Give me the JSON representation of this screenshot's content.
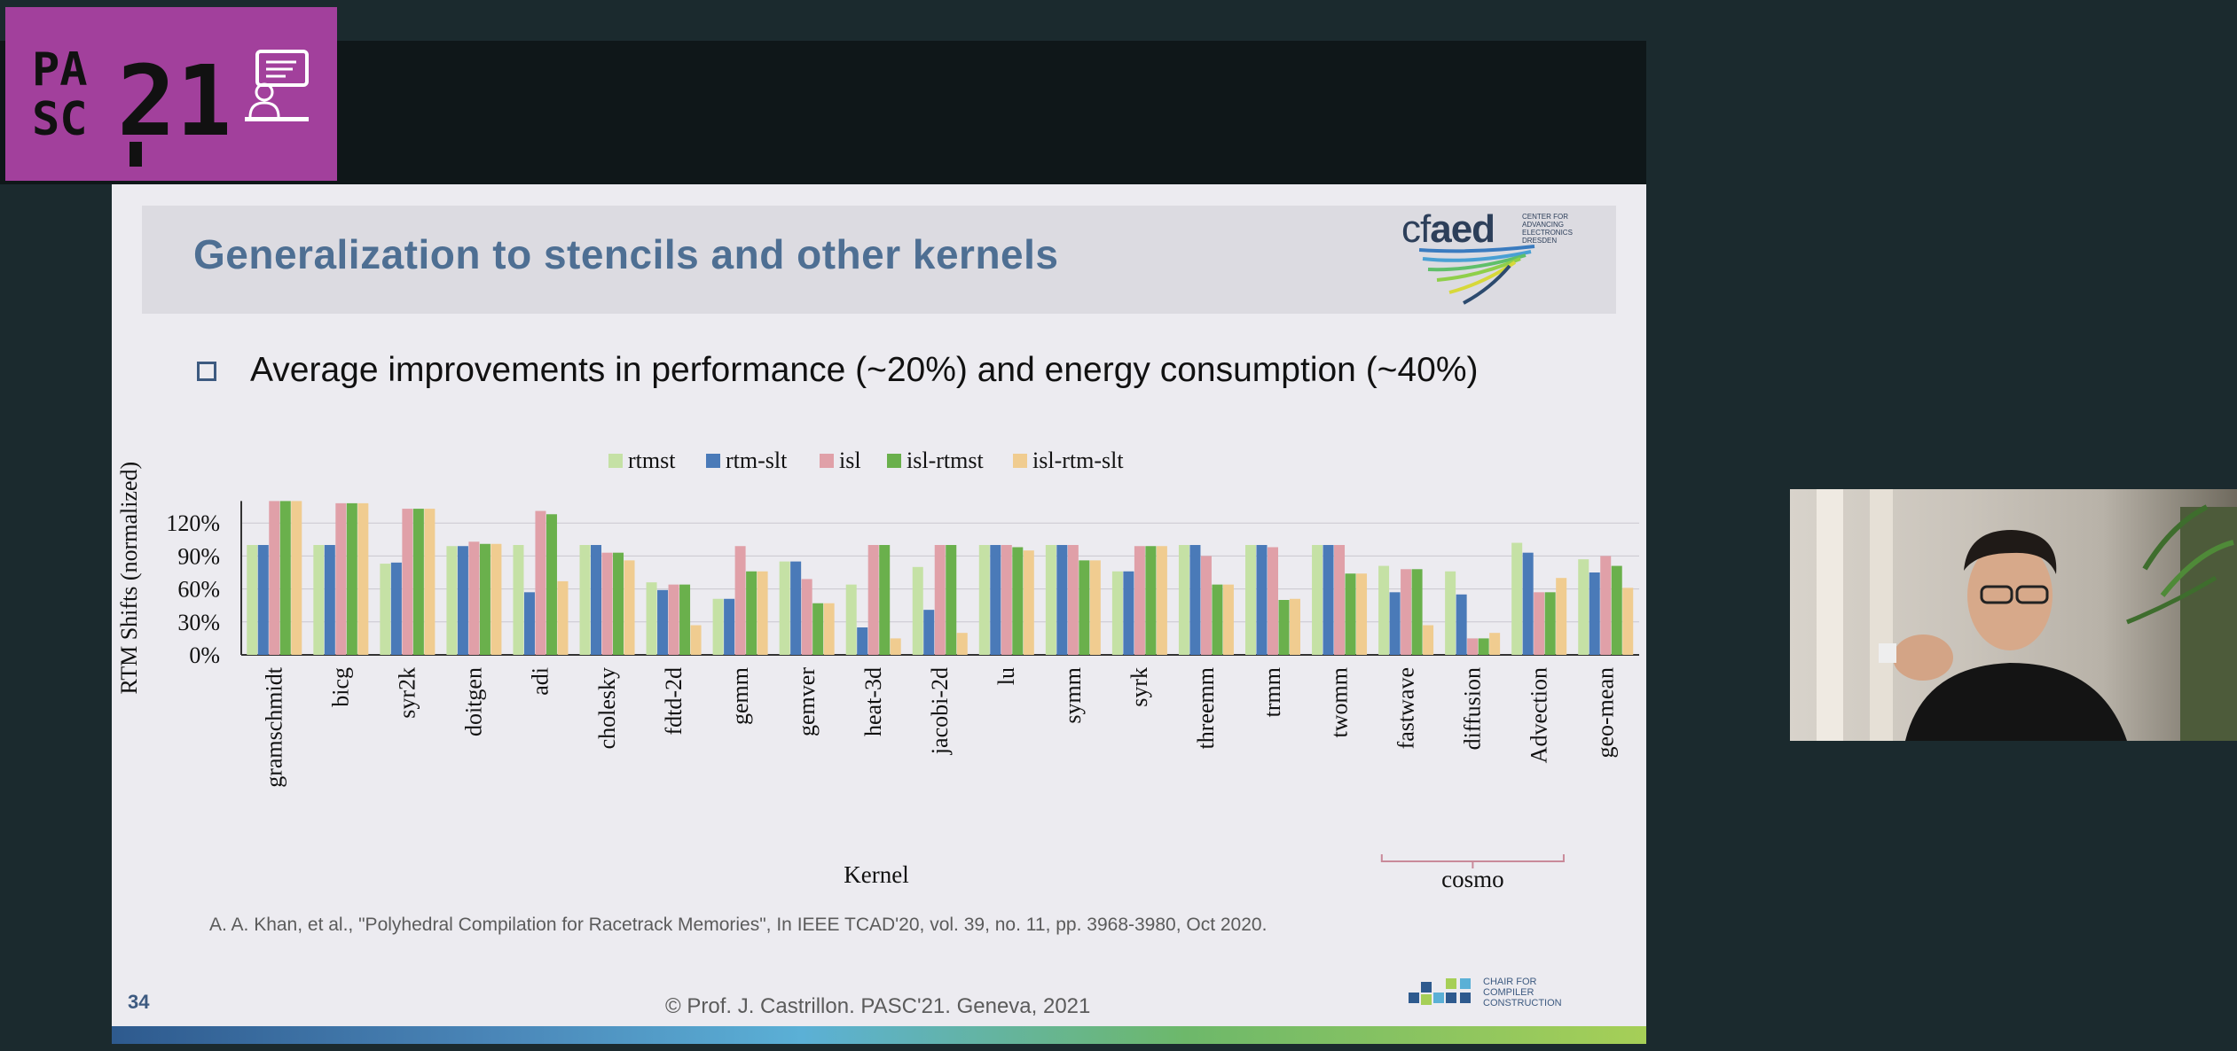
{
  "logo": {
    "text_top": "PA",
    "text_bottom": "SC",
    "number": "21",
    "icon": "presenter-screen-icon"
  },
  "slide": {
    "title": "Generalization to stencils and other kernels",
    "logo_word_a": "cf",
    "logo_word_b": "aed",
    "logo_small": "CENTER FOR ADVANCING ELECTRONICS DRESDEN",
    "bullet": "Average improvements in performance (~20%) and energy consumption (~40%)",
    "citation": "A. A. Khan, et al., \"Polyhedral Compilation for Racetrack Memories\", In IEEE TCAD'20, vol. 39, no. 11, pp. 3968-3980, Oct 2020.",
    "page_number": "34",
    "copyright": "© Prof. J. Castrillon. PASC'21. Geneva, 2021",
    "ccc_text": "CHAIR FOR COMPILER CONSTRUCTION"
  },
  "chart_data": {
    "type": "bar",
    "xlabel": "Kernel",
    "ylabel": "RTM Shifts (normalized)",
    "ylim": [
      0,
      140
    ],
    "yticks": [
      "0%",
      "30%",
      "60%",
      "90%",
      "120%"
    ],
    "ytick_values": [
      0,
      30,
      60,
      90,
      120
    ],
    "group_bracket_label": "cosmo",
    "legend_position": "top",
    "grid": true,
    "categories": [
      "gramschmidt",
      "bicg",
      "syr2k",
      "doitgen",
      "adi",
      "cholesky",
      "fdtd-2d",
      "gemm",
      "gemver",
      "heat-3d",
      "jacobi-2d",
      "lu",
      "symm",
      "syrk",
      "threemm",
      "trmm",
      "twomm",
      "fastwave",
      "diffusion",
      "Advection",
      "geo-mean"
    ],
    "series": [
      {
        "name": "rtmst",
        "color": "#c5e1a5",
        "values": [
          100,
          100,
          83,
          99,
          100,
          100,
          66,
          51,
          85,
          64,
          80,
          100,
          100,
          76,
          100,
          100,
          100,
          81,
          76,
          102,
          87
        ]
      },
      {
        "name": "rtm-slt",
        "color": "#4a7ab8",
        "values": [
          100,
          100,
          84,
          99,
          57,
          100,
          59,
          51,
          85,
          25,
          41,
          100,
          100,
          76,
          100,
          100,
          100,
          57,
          55,
          93,
          75
        ]
      },
      {
        "name": "isl",
        "color": "#e0a0a8",
        "values": [
          140,
          138,
          133,
          103,
          131,
          93,
          64,
          99,
          69,
          100,
          100,
          100,
          100,
          99,
          90,
          98,
          100,
          78,
          15,
          57,
          90
        ]
      },
      {
        "name": "isl-rtmst",
        "color": "#6ab04c",
        "values": [
          140,
          138,
          133,
          101,
          128,
          93,
          64,
          76,
          47,
          100,
          100,
          98,
          86,
          99,
          64,
          50,
          74,
          78,
          15,
          57,
          81
        ]
      },
      {
        "name": "isl-rtm-slt",
        "color": "#f0cc90",
        "values": [
          140,
          138,
          133,
          101,
          67,
          86,
          27,
          76,
          47,
          15,
          20,
          95,
          86,
          99,
          64,
          51,
          74,
          27,
          20,
          70,
          61
        ]
      }
    ]
  },
  "webcam": {
    "label": "speaker-video"
  }
}
